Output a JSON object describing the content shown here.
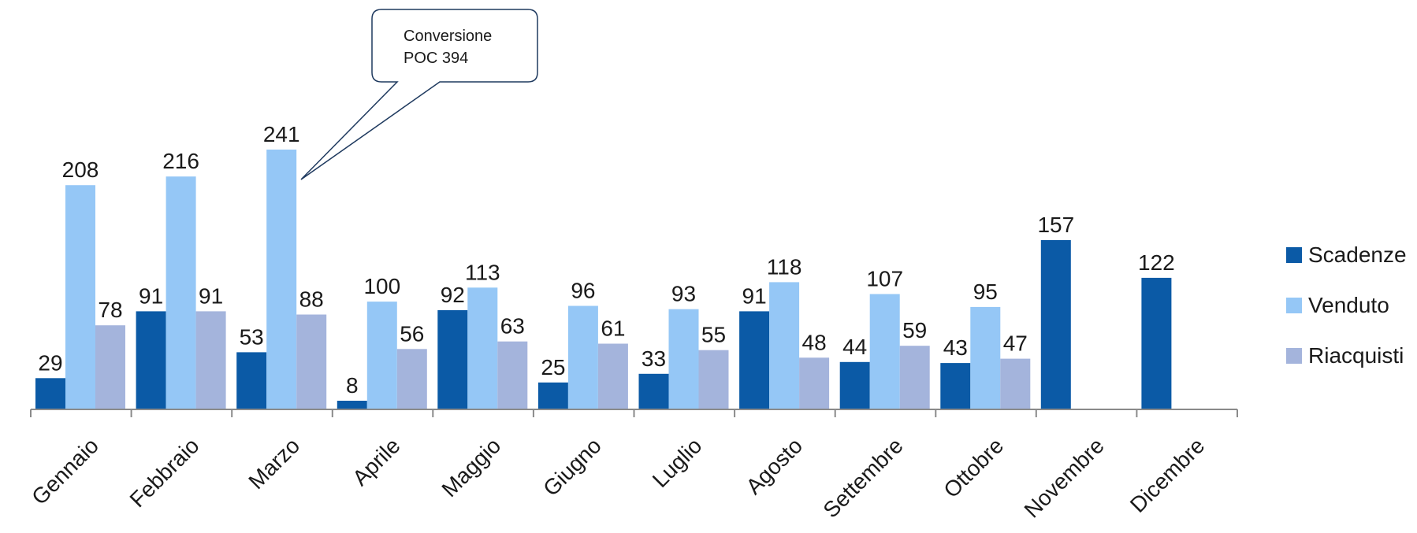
{
  "chart_data": {
    "type": "bar",
    "categories": [
      "Gennaio",
      "Febbraio",
      "Marzo",
      "Aprile",
      "Maggio",
      "Giugno",
      "Luglio",
      "Agosto",
      "Settembre",
      "Ottobre",
      "Novembre",
      "Dicembre"
    ],
    "series": [
      {
        "name": "Scadenze",
        "color": "#0b5aa6",
        "values": [
          29,
          91,
          53,
          8,
          92,
          25,
          33,
          91,
          44,
          43,
          157,
          122
        ]
      },
      {
        "name": "Venduto",
        "color": "#95c7f6",
        "values": [
          208,
          216,
          241,
          100,
          113,
          96,
          93,
          118,
          107,
          95,
          null,
          null
        ]
      },
      {
        "name": "Riacquisti",
        "color": "#a4b4dc",
        "values": [
          78,
          91,
          88,
          56,
          63,
          61,
          55,
          48,
          59,
          47,
          null,
          null
        ]
      }
    ],
    "ylim": [
      0,
      260
    ],
    "grid": false,
    "legend": "right",
    "annotation": {
      "line1": "Conversione",
      "line2": "POC 394",
      "category": "Marzo",
      "series": "Venduto"
    }
  }
}
